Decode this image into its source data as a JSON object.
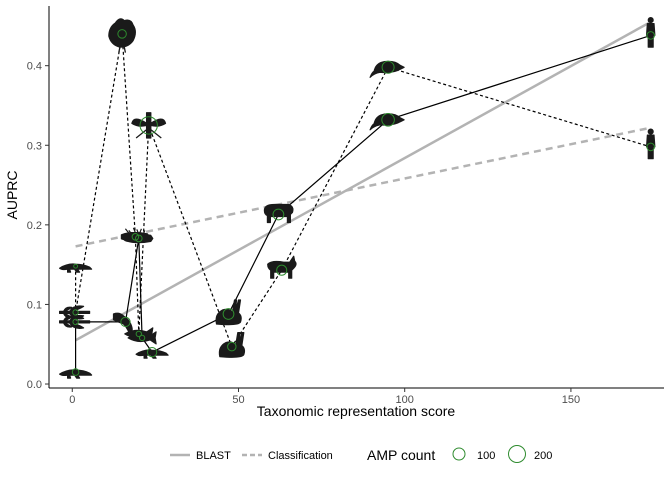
{
  "chart_data": {
    "type": "scatter",
    "xlabel": "Taxonomic representation score",
    "ylabel": "AUPRC",
    "xlim": [
      -7,
      178
    ],
    "ylim": [
      -0.005,
      0.475
    ],
    "x_ticks": [
      0,
      50,
      100,
      150
    ],
    "y_ticks": [
      0.0,
      0.1,
      0.2,
      0.3,
      0.4
    ],
    "x_tick_labels": [
      "0",
      "50",
      "100",
      "150"
    ],
    "y_tick_labels": [
      "0.0",
      "0.1",
      "0.2",
      "0.3",
      "0.4"
    ],
    "grid": false,
    "legend_position": "bottom",
    "series": [
      {
        "name": "BLAST",
        "style": "solid",
        "points": [
          {
            "x": 1,
            "y": 0.015,
            "amp": 30,
            "icon": "lizard"
          },
          {
            "x": 1,
            "y": 0.078,
            "amp": 20,
            "icon": "dragonfly"
          },
          {
            "x": 16,
            "y": 0.078,
            "amp": 60,
            "icon": "salamander"
          },
          {
            "x": 20,
            "y": 0.183,
            "amp": 30,
            "icon": "insect"
          },
          {
            "x": 21,
            "y": 0.058,
            "amp": 20,
            "icon": "fish"
          },
          {
            "x": 24,
            "y": 0.04,
            "amp": 60,
            "icon": "lizard"
          },
          {
            "x": 47,
            "y": 0.088,
            "amp": 80,
            "icon": "rabbit"
          },
          {
            "x": 62,
            "y": 0.213,
            "amp": 80,
            "icon": "pig"
          },
          {
            "x": 95,
            "y": 0.332,
            "amp": 110,
            "icon": "mouse"
          },
          {
            "x": 174,
            "y": 0.438,
            "amp": 40,
            "icon": "human"
          }
        ]
      },
      {
        "name": "Classification",
        "style": "dashed",
        "points": [
          {
            "x": 1,
            "y": 0.148,
            "amp": 10,
            "icon": "lizard"
          },
          {
            "x": 1,
            "y": 0.09,
            "amp": 20,
            "icon": "dragonfly"
          },
          {
            "x": 15,
            "y": 0.44,
            "amp": 50,
            "icon": "rooster"
          },
          {
            "x": 19,
            "y": 0.185,
            "amp": 30,
            "icon": "insect"
          },
          {
            "x": 20,
            "y": 0.063,
            "amp": 20,
            "icon": "fish"
          },
          {
            "x": 23,
            "y": 0.325,
            "amp": 210,
            "icon": "mosquito"
          },
          {
            "x": 48,
            "y": 0.047,
            "amp": 50,
            "icon": "rabbit"
          },
          {
            "x": 63,
            "y": 0.143,
            "amp": 70,
            "icon": "goat"
          },
          {
            "x": 95,
            "y": 0.398,
            "amp": 100,
            "icon": "mouse"
          },
          {
            "x": 174,
            "y": 0.298,
            "amp": 40,
            "icon": "human"
          }
        ]
      }
    ],
    "trendlines": [
      {
        "name": "BLAST",
        "style": "solid",
        "x": [
          1,
          174
        ],
        "y": [
          0.055,
          0.455
        ],
        "color": "#b3b3b3"
      },
      {
        "name": "Classification",
        "style": "dashed",
        "x": [
          1,
          174
        ],
        "y": [
          0.173,
          0.322
        ],
        "color": "#b3b3b3"
      }
    ],
    "size_legend": {
      "title": "AMP count",
      "values": [
        100,
        200
      ],
      "labels": [
        "100",
        "200"
      ]
    },
    "line_legend": [
      {
        "label": "BLAST",
        "style": "solid"
      },
      {
        "label": "Classification",
        "style": "dashed"
      }
    ],
    "colors": {
      "point_outline": "#2e8b2e",
      "path_line": "#000000",
      "trend_line": "#b3b3b3",
      "silhouette": "#1a1a1a"
    }
  }
}
